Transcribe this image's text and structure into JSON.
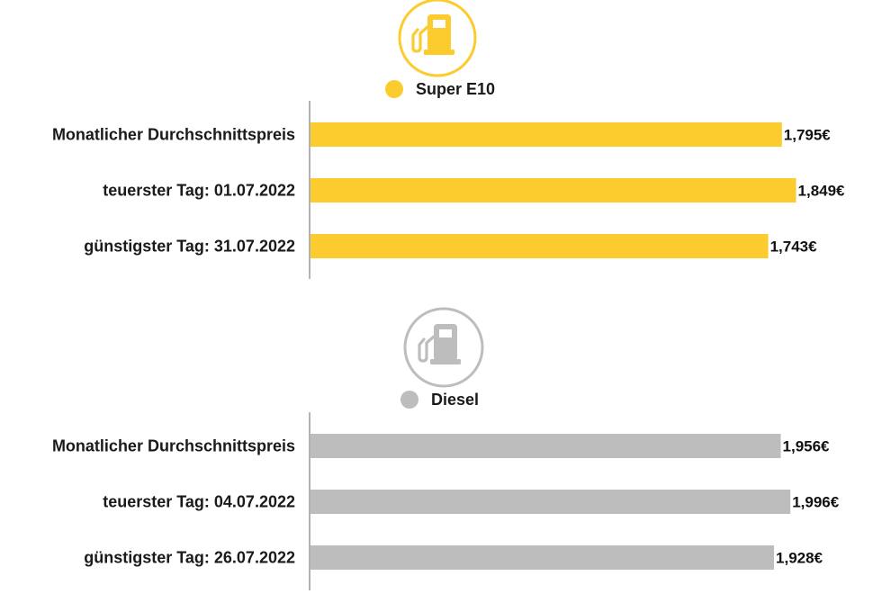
{
  "chart_data": [
    {
      "type": "bar",
      "orientation": "horizontal",
      "series": [
        {
          "name": "Super E10",
          "values": [
            1.795,
            1.849,
            1.743
          ],
          "color": "#FCCB2E"
        }
      ],
      "categories": [
        "Monatlicher Durchschnittspreis",
        "teuerster Tag: 01.07.2022",
        "günstigster Tag: 31.07.2022"
      ],
      "value_labels": [
        "1,795€",
        "1,849€",
        "1,743€"
      ],
      "icon": "fuel-pump-icon",
      "icon_color": "#FCCB2E",
      "xlim": [
        0,
        1.95
      ],
      "grid": false,
      "legend_position": "top-center"
    },
    {
      "type": "bar",
      "orientation": "horizontal",
      "series": [
        {
          "name": "Diesel",
          "values": [
            1.956,
            1.996,
            1.928
          ],
          "color": "#BDBDBD"
        }
      ],
      "categories": [
        "Monatlicher Durchschnittspreis",
        "teuerster Tag: 04.07.2022",
        "günstigster Tag: 26.07.2022"
      ],
      "value_labels": [
        "1,956€",
        "1,996€",
        "1,928€"
      ],
      "icon": "fuel-pump-icon",
      "icon_color": "#BDBDBD",
      "xlim": [
        0,
        2.13
      ],
      "grid": false,
      "legend_position": "top-center"
    }
  ]
}
